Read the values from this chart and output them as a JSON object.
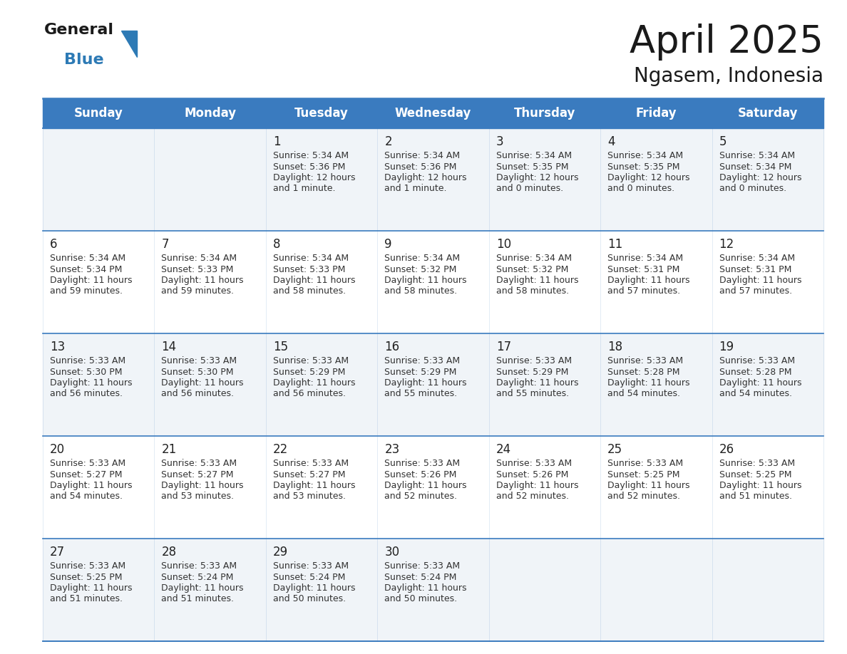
{
  "title": "April 2025",
  "subtitle": "Ngasem, Indonesia",
  "header_bg_color": "#3a7bbf",
  "header_text_color": "#ffffff",
  "row_bg_colors": [
    "#f0f4f8",
    "#ffffff"
  ],
  "grid_line_color": "#3a7bbf",
  "day_names": [
    "Sunday",
    "Monday",
    "Tuesday",
    "Wednesday",
    "Thursday",
    "Friday",
    "Saturday"
  ],
  "days_data": [
    {
      "day": 1,
      "col": 2,
      "row": 0,
      "sunrise": "5:34 AM",
      "sunset": "5:36 PM",
      "daylight": "12 hours and 1 minute."
    },
    {
      "day": 2,
      "col": 3,
      "row": 0,
      "sunrise": "5:34 AM",
      "sunset": "5:36 PM",
      "daylight": "12 hours and 1 minute."
    },
    {
      "day": 3,
      "col": 4,
      "row": 0,
      "sunrise": "5:34 AM",
      "sunset": "5:35 PM",
      "daylight": "12 hours and 0 minutes."
    },
    {
      "day": 4,
      "col": 5,
      "row": 0,
      "sunrise": "5:34 AM",
      "sunset": "5:35 PM",
      "daylight": "12 hours and 0 minutes."
    },
    {
      "day": 5,
      "col": 6,
      "row": 0,
      "sunrise": "5:34 AM",
      "sunset": "5:34 PM",
      "daylight": "12 hours and 0 minutes."
    },
    {
      "day": 6,
      "col": 0,
      "row": 1,
      "sunrise": "5:34 AM",
      "sunset": "5:34 PM",
      "daylight": "11 hours and 59 minutes."
    },
    {
      "day": 7,
      "col": 1,
      "row": 1,
      "sunrise": "5:34 AM",
      "sunset": "5:33 PM",
      "daylight": "11 hours and 59 minutes."
    },
    {
      "day": 8,
      "col": 2,
      "row": 1,
      "sunrise": "5:34 AM",
      "sunset": "5:33 PM",
      "daylight": "11 hours and 58 minutes."
    },
    {
      "day": 9,
      "col": 3,
      "row": 1,
      "sunrise": "5:34 AM",
      "sunset": "5:32 PM",
      "daylight": "11 hours and 58 minutes."
    },
    {
      "day": 10,
      "col": 4,
      "row": 1,
      "sunrise": "5:34 AM",
      "sunset": "5:32 PM",
      "daylight": "11 hours and 58 minutes."
    },
    {
      "day": 11,
      "col": 5,
      "row": 1,
      "sunrise": "5:34 AM",
      "sunset": "5:31 PM",
      "daylight": "11 hours and 57 minutes."
    },
    {
      "day": 12,
      "col": 6,
      "row": 1,
      "sunrise": "5:34 AM",
      "sunset": "5:31 PM",
      "daylight": "11 hours and 57 minutes."
    },
    {
      "day": 13,
      "col": 0,
      "row": 2,
      "sunrise": "5:33 AM",
      "sunset": "5:30 PM",
      "daylight": "11 hours and 56 minutes."
    },
    {
      "day": 14,
      "col": 1,
      "row": 2,
      "sunrise": "5:33 AM",
      "sunset": "5:30 PM",
      "daylight": "11 hours and 56 minutes."
    },
    {
      "day": 15,
      "col": 2,
      "row": 2,
      "sunrise": "5:33 AM",
      "sunset": "5:29 PM",
      "daylight": "11 hours and 56 minutes."
    },
    {
      "day": 16,
      "col": 3,
      "row": 2,
      "sunrise": "5:33 AM",
      "sunset": "5:29 PM",
      "daylight": "11 hours and 55 minutes."
    },
    {
      "day": 17,
      "col": 4,
      "row": 2,
      "sunrise": "5:33 AM",
      "sunset": "5:29 PM",
      "daylight": "11 hours and 55 minutes."
    },
    {
      "day": 18,
      "col": 5,
      "row": 2,
      "sunrise": "5:33 AM",
      "sunset": "5:28 PM",
      "daylight": "11 hours and 54 minutes."
    },
    {
      "day": 19,
      "col": 6,
      "row": 2,
      "sunrise": "5:33 AM",
      "sunset": "5:28 PM",
      "daylight": "11 hours and 54 minutes."
    },
    {
      "day": 20,
      "col": 0,
      "row": 3,
      "sunrise": "5:33 AM",
      "sunset": "5:27 PM",
      "daylight": "11 hours and 54 minutes."
    },
    {
      "day": 21,
      "col": 1,
      "row": 3,
      "sunrise": "5:33 AM",
      "sunset": "5:27 PM",
      "daylight": "11 hours and 53 minutes."
    },
    {
      "day": 22,
      "col": 2,
      "row": 3,
      "sunrise": "5:33 AM",
      "sunset": "5:27 PM",
      "daylight": "11 hours and 53 minutes."
    },
    {
      "day": 23,
      "col": 3,
      "row": 3,
      "sunrise": "5:33 AM",
      "sunset": "5:26 PM",
      "daylight": "11 hours and 52 minutes."
    },
    {
      "day": 24,
      "col": 4,
      "row": 3,
      "sunrise": "5:33 AM",
      "sunset": "5:26 PM",
      "daylight": "11 hours and 52 minutes."
    },
    {
      "day": 25,
      "col": 5,
      "row": 3,
      "sunrise": "5:33 AM",
      "sunset": "5:25 PM",
      "daylight": "11 hours and 52 minutes."
    },
    {
      "day": 26,
      "col": 6,
      "row": 3,
      "sunrise": "5:33 AM",
      "sunset": "5:25 PM",
      "daylight": "11 hours and 51 minutes."
    },
    {
      "day": 27,
      "col": 0,
      "row": 4,
      "sunrise": "5:33 AM",
      "sunset": "5:25 PM",
      "daylight": "11 hours and 51 minutes."
    },
    {
      "day": 28,
      "col": 1,
      "row": 4,
      "sunrise": "5:33 AM",
      "sunset": "5:24 PM",
      "daylight": "11 hours and 51 minutes."
    },
    {
      "day": 29,
      "col": 2,
      "row": 4,
      "sunrise": "5:33 AM",
      "sunset": "5:24 PM",
      "daylight": "11 hours and 50 minutes."
    },
    {
      "day": 30,
      "col": 3,
      "row": 4,
      "sunrise": "5:33 AM",
      "sunset": "5:24 PM",
      "daylight": "11 hours and 50 minutes."
    }
  ],
  "num_rows": 5,
  "num_cols": 7,
  "title_fontsize": 38,
  "subtitle_fontsize": 20,
  "header_fontsize": 12,
  "day_num_fontsize": 12,
  "cell_text_fontsize": 9,
  "logo_general_color": "#1a1a1a",
  "logo_blue_color": "#2d7ab5",
  "logo_triangle_color": "#2d7ab5"
}
